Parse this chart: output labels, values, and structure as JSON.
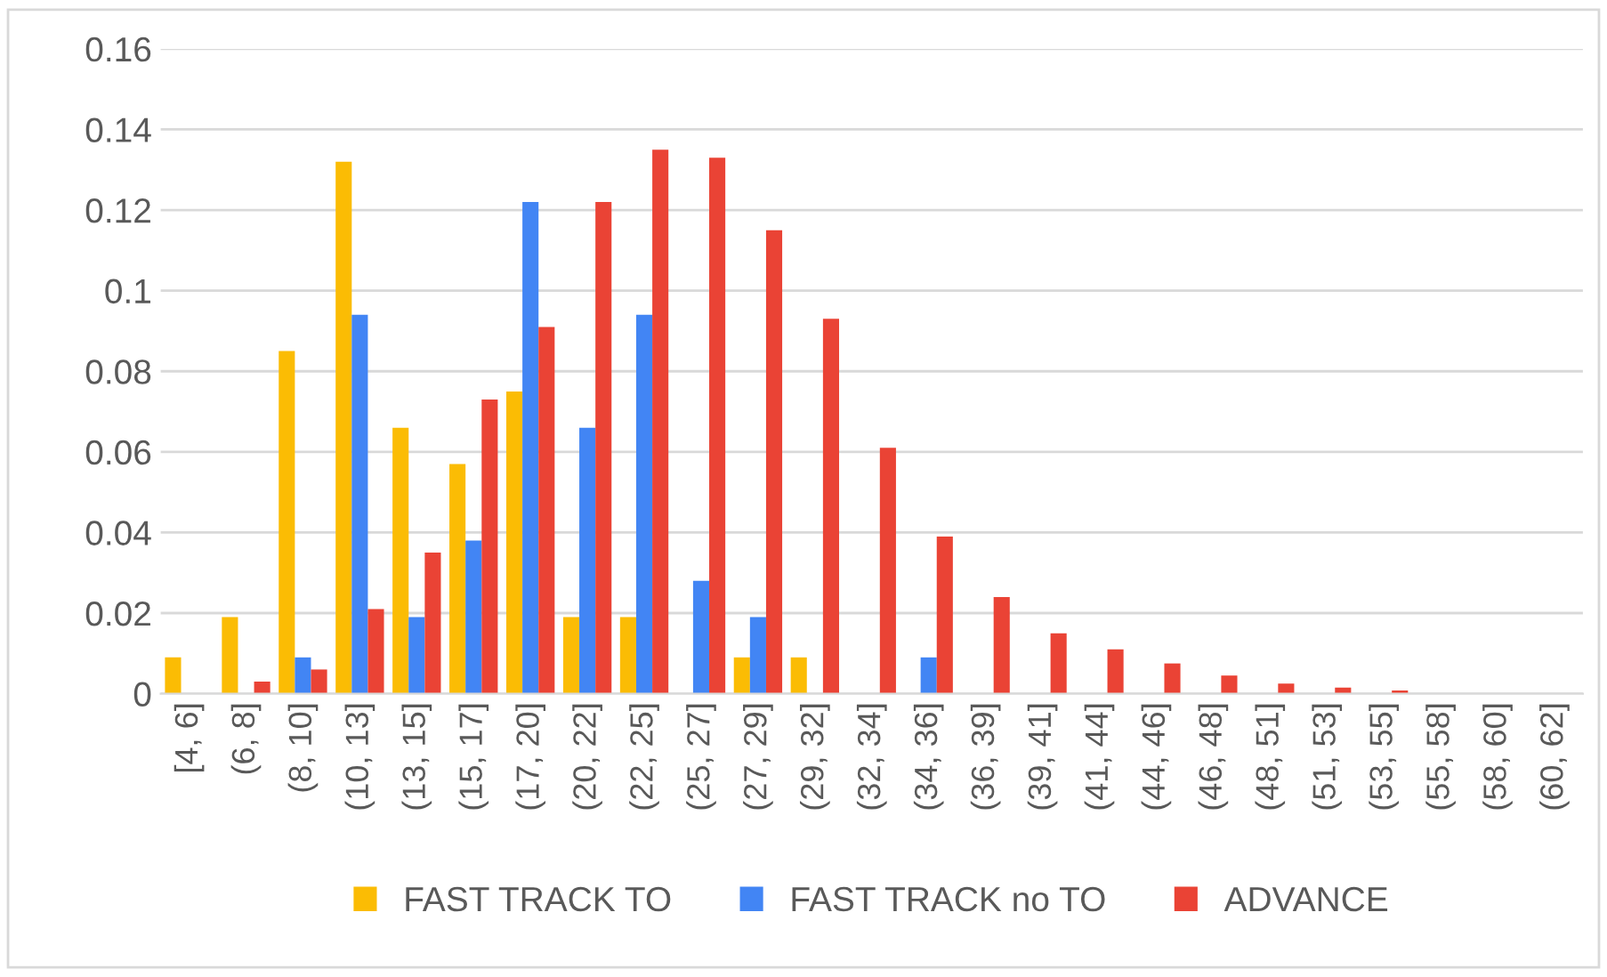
{
  "chart_data": {
    "type": "bar",
    "categories": [
      "[4, 6]",
      "(6, 8]",
      "(8, 10]",
      "(10, 13]",
      "(13, 15]",
      "(15, 17]",
      "(17, 20]",
      "(20, 22]",
      "(22, 25]",
      "(25, 27]",
      "(27, 29]",
      "(29, 32]",
      "(32, 34]",
      "(34, 36]",
      "(36, 39]",
      "(39, 41]",
      "(41, 44]",
      "(44, 46]",
      "(46, 48]",
      "(48, 51]",
      "(51, 53]",
      "(53, 55]",
      "(55, 58]",
      "(58, 60]",
      "(60, 62]"
    ],
    "series": [
      {
        "name": "FAST TRACK TO",
        "color": "#fbbc04",
        "values": [
          0.009,
          0.019,
          0.085,
          0.132,
          0.066,
          0.057,
          0.075,
          0.019,
          0.019,
          0,
          0.009,
          0.009,
          0,
          0,
          0,
          0,
          0,
          0,
          0,
          0,
          0,
          0,
          0,
          0,
          0
        ]
      },
      {
        "name": "FAST TRACK no TO",
        "color": "#4285f4",
        "values": [
          0,
          0,
          0.009,
          0.094,
          0.019,
          0.038,
          0.122,
          0.066,
          0.094,
          0.028,
          0.019,
          0,
          0,
          0.009,
          0,
          0,
          0,
          0,
          0,
          0,
          0,
          0,
          0,
          0,
          0
        ]
      },
      {
        "name": "ADVANCE",
        "color": "#ea4335",
        "values": [
          0,
          0.003,
          0.006,
          0.021,
          0.035,
          0.073,
          0.091,
          0.122,
          0.135,
          0.133,
          0.115,
          0.093,
          0.061,
          0.039,
          0.024,
          0.015,
          0.011,
          0.0075,
          0.0045,
          0.0025,
          0.0015,
          0.0008,
          0,
          0,
          0
        ]
      }
    ],
    "ylim": [
      0,
      0.16
    ],
    "yticks": [
      0,
      0.02,
      0.04,
      0.06,
      0.08,
      {
        "value": 0.1,
        "label": "0.1"
      },
      0.12,
      0.14,
      0.16
    ],
    "grid": "y",
    "legend": "bottom"
  }
}
